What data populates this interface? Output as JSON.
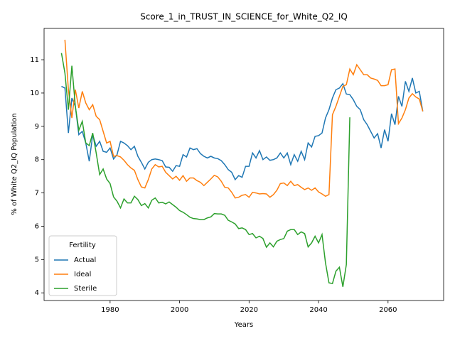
{
  "chart_data": {
    "type": "line",
    "title": "Score_1_in_TRUST_IN_SCIENCE_for_White_Q2_IQ",
    "x_label": "Years",
    "y_label": "% of White Q2_IQ Population",
    "x": [
      1966,
      1967,
      1968,
      1969,
      1970,
      1971,
      1972,
      1973,
      1974,
      1975,
      1976,
      1977,
      1978,
      1979,
      1980,
      1981,
      1982,
      1983,
      1984,
      1985,
      1986,
      1987,
      1988,
      1989,
      1990,
      1991,
      1992,
      1993,
      1994,
      1995,
      1996,
      1997,
      1998,
      1999,
      2000,
      2001,
      2002,
      2003,
      2004,
      2005,
      2006,
      2007,
      2008,
      2009,
      2010,
      2011,
      2012,
      2013,
      2014,
      2015,
      2016,
      2017,
      2018,
      2019,
      2020,
      2021,
      2022,
      2023,
      2024,
      2025,
      2026,
      2027,
      2028,
      2029,
      2030,
      2031,
      2032,
      2033,
      2034,
      2035,
      2036,
      2037,
      2038,
      2039,
      2040,
      2041,
      2042,
      2043,
      2044,
      2045,
      2046,
      2047,
      2048,
      2049,
      2050,
      2051,
      2052,
      2053,
      2054,
      2055,
      2056,
      2057,
      2058,
      2059,
      2060,
      2061,
      2062,
      2063,
      2064,
      2065,
      2066,
      2067,
      2068,
      2069,
      2070
    ],
    "series": [
      {
        "name": "Actual",
        "color": "#1f77b4",
        "values": [
          10.2,
          10.15,
          8.8,
          9.85,
          9.6,
          8.75,
          8.85,
          8.5,
          7.95,
          8.75,
          8.4,
          8.55,
          8.25,
          8.22,
          8.35,
          8.02,
          8.15,
          8.55,
          8.5,
          8.42,
          8.3,
          8.4,
          8.1,
          7.92,
          7.72,
          7.92,
          8.0,
          8.02,
          8.0,
          7.97,
          7.78,
          7.77,
          7.65,
          7.82,
          7.8,
          8.15,
          8.08,
          8.35,
          8.3,
          8.33,
          8.18,
          8.1,
          8.05,
          8.1,
          8.05,
          8.03,
          7.97,
          7.85,
          7.7,
          7.62,
          7.4,
          7.52,
          7.47,
          7.8,
          7.8,
          8.2,
          8.05,
          8.27,
          8.0,
          8.08,
          7.98,
          8.0,
          8.05,
          8.2,
          8.05,
          8.2,
          7.85,
          8.15,
          7.95,
          8.25,
          8.0,
          8.5,
          8.38,
          8.7,
          8.72,
          8.8,
          9.25,
          9.5,
          9.85,
          10.1,
          10.15,
          10.28,
          9.97,
          9.95,
          9.8,
          9.6,
          9.5,
          9.2,
          9.05,
          8.85,
          8.65,
          8.78,
          8.35,
          8.9,
          8.55,
          9.38,
          9.05,
          9.9,
          9.6,
          10.35,
          10.05,
          10.45,
          10.0,
          10.05,
          9.45
        ]
      },
      {
        "name": "Ideal",
        "color": "#ff7f0e",
        "values": [
          null,
          11.6,
          10.1,
          9.25,
          10.1,
          9.55,
          10.05,
          9.7,
          9.5,
          9.65,
          9.3,
          9.2,
          8.85,
          8.5,
          8.55,
          8.1,
          8.12,
          8.08,
          7.98,
          7.85,
          7.75,
          7.68,
          7.4,
          7.18,
          7.15,
          7.4,
          7.72,
          7.85,
          7.78,
          7.8,
          7.62,
          7.52,
          7.42,
          7.5,
          7.38,
          7.52,
          7.35,
          7.45,
          7.45,
          7.37,
          7.32,
          7.22,
          7.32,
          7.42,
          7.53,
          7.48,
          7.35,
          7.17,
          7.15,
          7.02,
          6.85,
          6.87,
          6.93,
          6.95,
          6.87,
          7.02,
          7.0,
          6.97,
          6.98,
          6.97,
          6.87,
          6.95,
          7.08,
          7.28,
          7.3,
          7.22,
          7.35,
          7.22,
          7.25,
          7.17,
          7.1,
          7.15,
          7.08,
          7.15,
          7.03,
          6.97,
          6.9,
          6.95,
          9.35,
          9.6,
          9.9,
          10.2,
          10.25,
          10.72,
          10.55,
          10.85,
          10.7,
          10.55,
          10.55,
          10.45,
          10.42,
          10.38,
          10.22,
          10.22,
          10.25,
          10.7,
          10.72,
          9.08,
          9.25,
          9.5,
          9.85,
          9.98,
          9.88,
          9.82,
          9.45
        ]
      },
      {
        "name": "Sterile",
        "color": "#2ca02c",
        "values": [
          11.2,
          10.6,
          9.5,
          10.82,
          9.6,
          8.88,
          9.15,
          8.5,
          8.42,
          8.8,
          8.2,
          7.55,
          7.72,
          7.42,
          7.28,
          6.88,
          6.75,
          6.55,
          6.82,
          6.7,
          6.7,
          6.9,
          6.8,
          6.62,
          6.68,
          6.55,
          6.78,
          6.85,
          6.7,
          6.72,
          6.67,
          6.73,
          6.65,
          6.57,
          6.47,
          6.42,
          6.35,
          6.27,
          6.23,
          6.22,
          6.2,
          6.2,
          6.25,
          6.28,
          6.38,
          6.37,
          6.37,
          6.33,
          6.18,
          6.13,
          6.07,
          5.93,
          5.95,
          5.9,
          5.75,
          5.78,
          5.65,
          5.7,
          5.63,
          5.37,
          5.5,
          5.38,
          5.55,
          5.6,
          5.63,
          5.85,
          5.9,
          5.9,
          5.75,
          5.83,
          5.78,
          5.38,
          5.5,
          5.7,
          5.5,
          5.75,
          4.9,
          4.3,
          4.28,
          4.65,
          4.77,
          4.18,
          4.85,
          9.27,
          null,
          null,
          null,
          null,
          null,
          null,
          null,
          null,
          null,
          null,
          null,
          null,
          null,
          null,
          null,
          null,
          null,
          null,
          null,
          null,
          null
        ]
      }
    ],
    "xlim": [
      1961,
      2076
    ],
    "ylim": [
      3.77,
      11.94
    ],
    "xticks": [
      1980,
      2000,
      2020,
      2040,
      2060
    ],
    "yticks": [
      4,
      5,
      6,
      7,
      8,
      9,
      10,
      11
    ],
    "legend_title": "Fertility",
    "legend": "lower left"
  }
}
